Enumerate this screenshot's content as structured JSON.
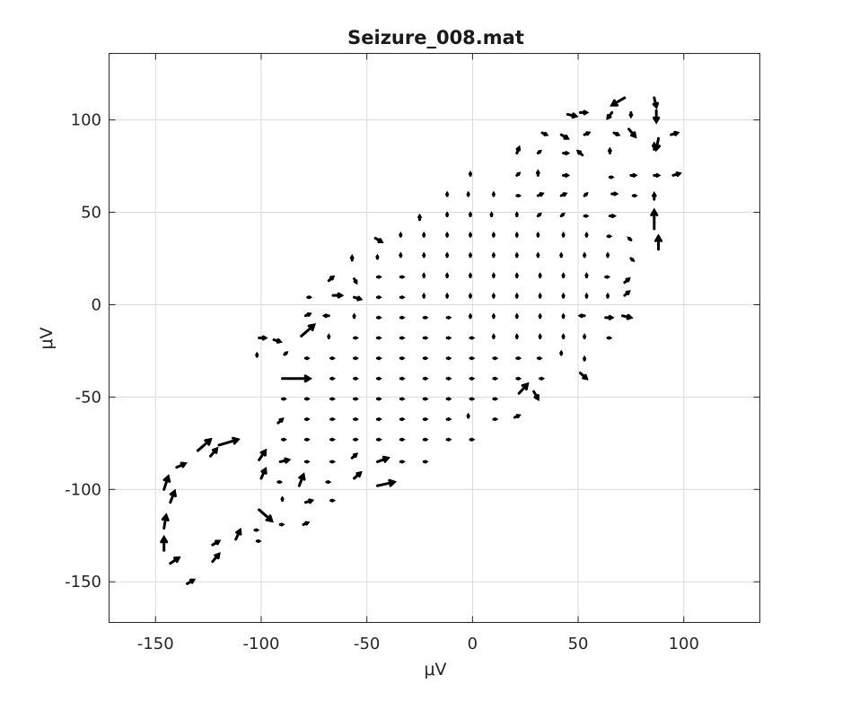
{
  "chart_data": {
    "type": "quiver",
    "title": "Seizure_008.mat",
    "xlabel": "μV",
    "ylabel": "μV",
    "xlim": [
      -172,
      136
    ],
    "ylim": [
      -172,
      136
    ],
    "xticks": [
      -150,
      -100,
      -50,
      0,
      50,
      100
    ],
    "yticks": [
      100,
      50,
      0,
      -50,
      -100,
      -150
    ],
    "xtick_labels": [
      "-150",
      "-100",
      "-50",
      "0",
      "50",
      "100"
    ],
    "ytick_labels": [
      "100",
      "50",
      "0",
      "-50",
      "-100",
      "-150"
    ],
    "grid": true,
    "color": "#000000",
    "arrows": [
      {
        "x": 72,
        "y": 112,
        "u": -6,
        "v": -4
      },
      {
        "x": 86,
        "y": 112,
        "u": 1,
        "v": -5
      },
      {
        "x": 87,
        "y": 105,
        "u": 0,
        "v": -6
      },
      {
        "x": 45,
        "y": 103,
        "u": 4,
        "v": -1
      },
      {
        "x": 51,
        "y": 104,
        "u": 3,
        "v": 0
      },
      {
        "x": 66,
        "y": 104,
        "u": -2,
        "v": -3
      },
      {
        "x": 75,
        "y": 104,
        "u": 0,
        "v": -2
      },
      {
        "x": 33,
        "y": 93,
        "u": 2,
        "v": -1
      },
      {
        "x": 42,
        "y": 92,
        "u": 3,
        "v": -2
      },
      {
        "x": 53,
        "y": 92,
        "u": 2,
        "v": 1
      },
      {
        "x": 67,
        "y": 93,
        "u": 2,
        "v": -1
      },
      {
        "x": 74,
        "y": 95,
        "u": 3,
        "v": -4
      },
      {
        "x": 88,
        "y": 90,
        "u": -1,
        "v": -6
      },
      {
        "x": 94,
        "y": 92,
        "u": 3,
        "v": 1
      },
      {
        "x": 21,
        "y": 82,
        "u": 1,
        "v": 3
      },
      {
        "x": 31,
        "y": 82,
        "u": 1,
        "v": 1
      },
      {
        "x": 43,
        "y": 82,
        "u": 2,
        "v": 0
      },
      {
        "x": 52,
        "y": 81,
        "u": -2,
        "v": 2
      },
      {
        "x": 65,
        "y": 82,
        "u": 0,
        "v": 2
      },
      {
        "x": 86,
        "y": 84,
        "u": 0,
        "v": 3
      },
      {
        "x": -1,
        "y": 70,
        "u": 0,
        "v": 1
      },
      {
        "x": 21,
        "y": 70,
        "u": 1,
        "v": 1
      },
      {
        "x": 31,
        "y": 70,
        "u": 0,
        "v": 2
      },
      {
        "x": 43,
        "y": 70,
        "u": 2,
        "v": 0
      },
      {
        "x": 65,
        "y": 69,
        "u": 1,
        "v": 0
      },
      {
        "x": 75,
        "y": 70,
        "u": 2,
        "v": 0
      },
      {
        "x": 86,
        "y": 70,
        "u": 2,
        "v": 0
      },
      {
        "x": 95,
        "y": 70,
        "u": 3,
        "v": 1
      },
      {
        "x": -12,
        "y": 59,
        "u": 0,
        "v": 1
      },
      {
        "x": -2,
        "y": 59,
        "u": 0,
        "v": 1
      },
      {
        "x": 10,
        "y": 59,
        "u": 0,
        "v": 1
      },
      {
        "x": 21,
        "y": 59,
        "u": 1,
        "v": 0
      },
      {
        "x": 31,
        "y": 59,
        "u": 2,
        "v": 1
      },
      {
        "x": 42,
        "y": 59,
        "u": 2,
        "v": 1
      },
      {
        "x": 53,
        "y": 59,
        "u": 1,
        "v": 1
      },
      {
        "x": 66,
        "y": 60,
        "u": 2,
        "v": 0
      },
      {
        "x": 76,
        "y": 59,
        "u": 1,
        "v": 0
      },
      {
        "x": 86,
        "y": 57,
        "u": 0,
        "v": 3
      },
      {
        "x": -25,
        "y": 46,
        "u": 0,
        "v": 2
      },
      {
        "x": -12,
        "y": 48,
        "u": 0,
        "v": 1
      },
      {
        "x": -1,
        "y": 48,
        "u": 0,
        "v": 1
      },
      {
        "x": 9,
        "y": 48,
        "u": 0,
        "v": 1
      },
      {
        "x": 21,
        "y": 48,
        "u": 0,
        "v": 1
      },
      {
        "x": 31,
        "y": 48,
        "u": 1,
        "v": 1
      },
      {
        "x": 42,
        "y": 48,
        "u": 1,
        "v": 1
      },
      {
        "x": 53,
        "y": 48,
        "u": 1,
        "v": 0
      },
      {
        "x": 65,
        "y": 48,
        "u": 2,
        "v": 0
      },
      {
        "x": 86,
        "y": 41,
        "u": 0,
        "v": 10
      },
      {
        "x": -46,
        "y": 36,
        "u": 3,
        "v": -2
      },
      {
        "x": -34,
        "y": 37,
        "u": 0,
        "v": 1
      },
      {
        "x": -23,
        "y": 37,
        "u": 0,
        "v": 1
      },
      {
        "x": -12,
        "y": 37,
        "u": 0,
        "v": 1
      },
      {
        "x": -1,
        "y": 37,
        "u": 0,
        "v": 1
      },
      {
        "x": 10,
        "y": 37,
        "u": 0,
        "v": 1
      },
      {
        "x": 21,
        "y": 37,
        "u": 0,
        "v": 1
      },
      {
        "x": 31,
        "y": 37,
        "u": 0,
        "v": 1
      },
      {
        "x": 43,
        "y": 37,
        "u": 0,
        "v": 1
      },
      {
        "x": 54,
        "y": 37,
        "u": 0,
        "v": 1
      },
      {
        "x": 64,
        "y": 37,
        "u": 1,
        "v": 0
      },
      {
        "x": 75,
        "y": 35,
        "u": -1,
        "v": 1
      },
      {
        "x": 88,
        "y": 30,
        "u": 0,
        "v": 7
      },
      {
        "x": -57,
        "y": 24,
        "u": 0,
        "v": 2
      },
      {
        "x": -45,
        "y": 25,
        "u": 0,
        "v": 1
      },
      {
        "x": -34,
        "y": 26,
        "u": 0,
        "v": 1
      },
      {
        "x": -23,
        "y": 26,
        "u": 0,
        "v": 1
      },
      {
        "x": -12,
        "y": 26,
        "u": 0,
        "v": 1
      },
      {
        "x": -1,
        "y": 26,
        "u": 0,
        "v": 1
      },
      {
        "x": 10,
        "y": 26,
        "u": 0,
        "v": 1
      },
      {
        "x": 21,
        "y": 26,
        "u": 0,
        "v": 1
      },
      {
        "x": 31,
        "y": 26,
        "u": 0,
        "v": 1
      },
      {
        "x": 42,
        "y": 26,
        "u": 0,
        "v": 1
      },
      {
        "x": 53,
        "y": 26,
        "u": 0,
        "v": 1
      },
      {
        "x": 64,
        "y": 26,
        "u": 0,
        "v": 1
      },
      {
        "x": 75,
        "y": 25,
        "u": 1,
        "v": -1
      },
      {
        "x": -68,
        "y": 13,
        "u": 2,
        "v": 2
      },
      {
        "x": -56,
        "y": 14,
        "u": 1,
        "v": -2
      },
      {
        "x": -45,
        "y": 15,
        "u": 1,
        "v": 0
      },
      {
        "x": -34,
        "y": 15,
        "u": 0,
        "v": 0
      },
      {
        "x": -23,
        "y": 15,
        "u": 0,
        "v": 1
      },
      {
        "x": -12,
        "y": 15,
        "u": 0,
        "v": 1
      },
      {
        "x": -1,
        "y": 15,
        "u": 0,
        "v": 1
      },
      {
        "x": 10,
        "y": 15,
        "u": 0,
        "v": 1
      },
      {
        "x": 21,
        "y": 15,
        "u": 0,
        "v": 1
      },
      {
        "x": 32,
        "y": 15,
        "u": 0,
        "v": 1
      },
      {
        "x": 43,
        "y": 15,
        "u": 0,
        "v": 1
      },
      {
        "x": 54,
        "y": 15,
        "u": 0,
        "v": 1
      },
      {
        "x": 63,
        "y": 15,
        "u": 1,
        "v": 0
      },
      {
        "x": 72,
        "y": 12,
        "u": 2,
        "v": 2
      },
      {
        "x": -78,
        "y": 4,
        "u": 1,
        "v": 0
      },
      {
        "x": -66,
        "y": 5,
        "u": 4,
        "v": 0
      },
      {
        "x": -56,
        "y": 4,
        "u": 3,
        "v": -1
      },
      {
        "x": -45,
        "y": 4,
        "u": 1,
        "v": 0
      },
      {
        "x": -34,
        "y": 4,
        "u": 0,
        "v": 0
      },
      {
        "x": -23,
        "y": 4,
        "u": 0,
        "v": 1
      },
      {
        "x": -12,
        "y": 4,
        "u": 0,
        "v": 1
      },
      {
        "x": -1,
        "y": 4,
        "u": 0,
        "v": 1
      },
      {
        "x": 10,
        "y": 4,
        "u": 0,
        "v": 1
      },
      {
        "x": 21,
        "y": 4,
        "u": 0,
        "v": 1
      },
      {
        "x": 32,
        "y": 4,
        "u": 0,
        "v": 1
      },
      {
        "x": 43,
        "y": 4,
        "u": 0,
        "v": 1
      },
      {
        "x": 54,
        "y": 4,
        "u": 0,
        "v": 1
      },
      {
        "x": 64,
        "y": 4,
        "u": 0,
        "v": 1
      },
      {
        "x": 72,
        "y": 5,
        "u": 2,
        "v": 2
      },
      {
        "x": -79,
        "y": -6,
        "u": 2,
        "v": 1
      },
      {
        "x": -68,
        "y": -6,
        "u": -2,
        "v": 0
      },
      {
        "x": -56,
        "y": -7,
        "u": 0,
        "v": 1
      },
      {
        "x": -45,
        "y": -7,
        "u": 0,
        "v": 0
      },
      {
        "x": -34,
        "y": -7,
        "u": 0,
        "v": 0
      },
      {
        "x": -23,
        "y": -7,
        "u": 0,
        "v": 0
      },
      {
        "x": -12,
        "y": -7,
        "u": 0,
        "v": 0
      },
      {
        "x": -1,
        "y": -7,
        "u": 0,
        "v": 1
      },
      {
        "x": 10,
        "y": -7,
        "u": 0,
        "v": 1
      },
      {
        "x": 21,
        "y": -7,
        "u": 0,
        "v": 1
      },
      {
        "x": 32,
        "y": -7,
        "u": 0,
        "v": 1
      },
      {
        "x": 43,
        "y": -7,
        "u": 0,
        "v": 1
      },
      {
        "x": 53,
        "y": -6,
        "u": -2,
        "v": 0
      },
      {
        "x": 63,
        "y": -7,
        "u": 3,
        "v": 0
      },
      {
        "x": 71,
        "y": -6,
        "u": 4,
        "v": -1
      },
      {
        "x": -101,
        "y": -18,
        "u": 3,
        "v": 0
      },
      {
        "x": -94,
        "y": -19,
        "u": 3,
        "v": -1
      },
      {
        "x": -81,
        "y": -17,
        "u": 6,
        "v": 6
      },
      {
        "x": -68,
        "y": -18,
        "u": 0,
        "v": 1
      },
      {
        "x": -56,
        "y": -18,
        "u": 0,
        "v": 0
      },
      {
        "x": -45,
        "y": -18,
        "u": 0,
        "v": 0
      },
      {
        "x": -34,
        "y": -18,
        "u": 0,
        "v": 0
      },
      {
        "x": -23,
        "y": -18,
        "u": 0,
        "v": 0
      },
      {
        "x": -12,
        "y": -18,
        "u": 0,
        "v": 0
      },
      {
        "x": -1,
        "y": -18,
        "u": 0,
        "v": 0
      },
      {
        "x": 10,
        "y": -18,
        "u": 0,
        "v": 1
      },
      {
        "x": 21,
        "y": -18,
        "u": 0,
        "v": 1
      },
      {
        "x": 32,
        "y": -18,
        "u": 0,
        "v": 1
      },
      {
        "x": 43,
        "y": -18,
        "u": 0,
        "v": 1
      },
      {
        "x": 53,
        "y": -18,
        "u": 0,
        "v": 1
      },
      {
        "x": 64,
        "y": -18,
        "u": 1,
        "v": 0
      },
      {
        "x": -102,
        "y": -28,
        "u": 0,
        "v": 1
      },
      {
        "x": -89,
        "y": -27,
        "u": 1,
        "v": 1
      },
      {
        "x": -79,
        "y": -29,
        "u": 0,
        "v": 0
      },
      {
        "x": -67,
        "y": -29,
        "u": 0,
        "v": 0
      },
      {
        "x": -56,
        "y": -29,
        "u": 0,
        "v": 0
      },
      {
        "x": -45,
        "y": -29,
        "u": 0,
        "v": 0
      },
      {
        "x": -34,
        "y": -29,
        "u": 0,
        "v": 0
      },
      {
        "x": -23,
        "y": -29,
        "u": 0,
        "v": 0
      },
      {
        "x": -12,
        "y": -29,
        "u": 0,
        "v": 0
      },
      {
        "x": -1,
        "y": -29,
        "u": 0,
        "v": 0
      },
      {
        "x": 10,
        "y": -29,
        "u": 0,
        "v": 0
      },
      {
        "x": 21,
        "y": -29,
        "u": 0,
        "v": 0
      },
      {
        "x": 31,
        "y": -29,
        "u": 0,
        "v": 0
      },
      {
        "x": 42,
        "y": -27,
        "u": 0,
        "v": 1
      },
      {
        "x": 53,
        "y": -30,
        "u": 0,
        "v": 1
      },
      {
        "x": -90,
        "y": -40,
        "u": 13,
        "v": 0
      },
      {
        "x": -79,
        "y": -40,
        "u": 1,
        "v": 0
      },
      {
        "x": -67,
        "y": -40,
        "u": 0,
        "v": 0
      },
      {
        "x": -56,
        "y": -40,
        "u": 0,
        "v": 0
      },
      {
        "x": -45,
        "y": -40,
        "u": 0,
        "v": 0
      },
      {
        "x": -34,
        "y": -40,
        "u": 0,
        "v": 0
      },
      {
        "x": -23,
        "y": -40,
        "u": 0,
        "v": 0
      },
      {
        "x": -12,
        "y": -40,
        "u": 0,
        "v": 0
      },
      {
        "x": -1,
        "y": -40,
        "u": 0,
        "v": 0
      },
      {
        "x": 10,
        "y": -40,
        "u": 0,
        "v": 0
      },
      {
        "x": 21,
        "y": -40,
        "u": 0,
        "v": 0
      },
      {
        "x": 32,
        "y": -40,
        "u": 0,
        "v": 0
      },
      {
        "x": 51,
        "y": -37,
        "u": 3,
        "v": -3
      },
      {
        "x": -90,
        "y": -51,
        "u": 0,
        "v": 0
      },
      {
        "x": -79,
        "y": -51,
        "u": 0,
        "v": 0
      },
      {
        "x": -67,
        "y": -51,
        "u": 0,
        "v": 0
      },
      {
        "x": -56,
        "y": -51,
        "u": 0,
        "v": 0
      },
      {
        "x": -45,
        "y": -51,
        "u": 0,
        "v": 0
      },
      {
        "x": -34,
        "y": -51,
        "u": 0,
        "v": 0
      },
      {
        "x": -23,
        "y": -51,
        "u": 0,
        "v": 0
      },
      {
        "x": -12,
        "y": -51,
        "u": 0,
        "v": 0
      },
      {
        "x": -1,
        "y": -51,
        "u": 0,
        "v": 0
      },
      {
        "x": 10,
        "y": -51,
        "u": 0,
        "v": 0
      },
      {
        "x": 22,
        "y": -48,
        "u": 4,
        "v": 5
      },
      {
        "x": 29,
        "y": -47,
        "u": 2,
        "v": -4
      },
      {
        "x": -92,
        "y": -64,
        "u": 2,
        "v": 2
      },
      {
        "x": -79,
        "y": -62,
        "u": 0,
        "v": 0
      },
      {
        "x": -67,
        "y": -62,
        "u": 0,
        "v": 0
      },
      {
        "x": -56,
        "y": -62,
        "u": 0,
        "v": 0
      },
      {
        "x": -45,
        "y": -62,
        "u": 0,
        "v": 0
      },
      {
        "x": -34,
        "y": -62,
        "u": 0,
        "v": 0
      },
      {
        "x": -23,
        "y": -62,
        "u": 0,
        "v": 0
      },
      {
        "x": -12,
        "y": -62,
        "u": 0,
        "v": 0
      },
      {
        "x": -2,
        "y": -61,
        "u": 0,
        "v": 1
      },
      {
        "x": 10,
        "y": -62,
        "u": 0,
        "v": 0
      },
      {
        "x": 20,
        "y": -61,
        "u": 2,
        "v": 1
      },
      {
        "x": -101,
        "y": -84,
        "u": 3,
        "v": 5
      },
      {
        "x": -90,
        "y": -73,
        "u": 0,
        "v": 0
      },
      {
        "x": -79,
        "y": -73,
        "u": 0,
        "v": 0
      },
      {
        "x": -67,
        "y": -73,
        "u": 0,
        "v": 0
      },
      {
        "x": -56,
        "y": -73,
        "u": 0,
        "v": 0
      },
      {
        "x": -45,
        "y": -73,
        "u": 0,
        "v": 0
      },
      {
        "x": -34,
        "y": -73,
        "u": 0,
        "v": 0
      },
      {
        "x": -23,
        "y": -73,
        "u": 0,
        "v": 0
      },
      {
        "x": -12,
        "y": -73,
        "u": 0,
        "v": 0
      },
      {
        "x": -1,
        "y": -73,
        "u": 0,
        "v": 0
      },
      {
        "x": -100,
        "y": -94,
        "u": 2,
        "v": 5
      },
      {
        "x": -91,
        "y": -85,
        "u": 4,
        "v": 1
      },
      {
        "x": -79,
        "y": -85,
        "u": 0,
        "v": 0
      },
      {
        "x": -67,
        "y": -85,
        "u": 0,
        "v": 0
      },
      {
        "x": -57,
        "y": -83,
        "u": 2,
        "v": 2
      },
      {
        "x": -45,
        "y": -85,
        "u": 5,
        "v": 2
      },
      {
        "x": -34,
        "y": -85,
        "u": 0,
        "v": 0
      },
      {
        "x": -23,
        "y": -85,
        "u": 0,
        "v": 0
      },
      {
        "x": -92,
        "y": -96,
        "u": 0,
        "v": 0
      },
      {
        "x": -82,
        "y": -98,
        "u": 2,
        "v": 6
      },
      {
        "x": -69,
        "y": -96,
        "u": 1,
        "v": 0
      },
      {
        "x": -56,
        "y": -94,
        "u": 3,
        "v": 3
      },
      {
        "x": -45,
        "y": -98,
        "u": 8,
        "v": 2
      },
      {
        "x": -101,
        "y": -111,
        "u": 6,
        "v": -6
      },
      {
        "x": -90,
        "y": -106,
        "u": 0,
        "v": 1
      },
      {
        "x": -79,
        "y": -107,
        "u": 3,
        "v": 1
      },
      {
        "x": -67,
        "y": -106,
        "u": 1,
        "v": 0
      },
      {
        "x": -103,
        "y": -122,
        "u": 1,
        "v": 0
      },
      {
        "x": -91,
        "y": -119,
        "u": 0,
        "v": 0
      },
      {
        "x": -80,
        "y": -119,
        "u": 2,
        "v": 1
      },
      {
        "x": -102,
        "y": -128,
        "u": 1,
        "v": 0
      },
      {
        "x": -112,
        "y": -127,
        "u": 2,
        "v": 5
      },
      {
        "x": -123,
        "y": -130,
        "u": 3,
        "v": 2
      },
      {
        "x": -123,
        "y": -139,
        "u": 3,
        "v": 4
      },
      {
        "x": -135,
        "y": -151,
        "u": 3,
        "v": 2
      },
      {
        "x": -143,
        "y": -140,
        "u": 4,
        "v": 3
      },
      {
        "x": -146,
        "y": -133,
        "u": 0,
        "v": 7
      },
      {
        "x": -146,
        "y": -121,
        "u": 1,
        "v": 7
      },
      {
        "x": -143,
        "y": -107,
        "u": 2,
        "v": 6
      },
      {
        "x": -146,
        "y": -100,
        "u": 2,
        "v": 7
      },
      {
        "x": -140,
        "y": -88,
        "u": 4,
        "v": 2
      },
      {
        "x": -130,
        "y": -79,
        "u": 6,
        "v": 6
      },
      {
        "x": -120,
        "y": -76,
        "u": 9,
        "v": 3
      },
      {
        "x": -124,
        "y": -82,
        "u": 3,
        "v": 4
      }
    ]
  }
}
